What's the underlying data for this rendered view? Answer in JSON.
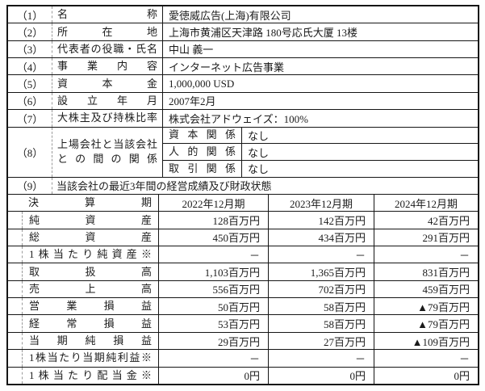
{
  "company_info": {
    "rows": [
      {
        "no": "（1）",
        "label": "名称",
        "value": "愛徳威広告(上海)有限公司"
      },
      {
        "no": "（2）",
        "label": "所在地",
        "value": "上海市黄浦区天津路 180号応氏大厦 13楼"
      },
      {
        "no": "（3）",
        "label": "代表者の役職・氏名",
        "value": "中山 義一"
      },
      {
        "no": "（4）",
        "label": "事業内容",
        "value": "インターネット広告事業"
      },
      {
        "no": "（5）",
        "label": "資本金",
        "value": "1,000,000 USD"
      },
      {
        "no": "（6）",
        "label": "設立年月",
        "value": "2007年2月"
      },
      {
        "no": "（7）",
        "label": "大株主及び持株比率",
        "value": "株式会社アドウェイズ：100%"
      }
    ],
    "row8": {
      "no": "（8）",
      "label": "上場会社と当該会社との間の関係",
      "sub_rows": [
        {
          "label": "資本関係",
          "value": "なし"
        },
        {
          "label": "人的関係",
          "value": "なし"
        },
        {
          "label": "取引関係",
          "value": "なし"
        }
      ]
    },
    "row9": {
      "no": "（9）",
      "value": "当該会社の最近3年間の経営成績及び財政状態"
    }
  },
  "financial": {
    "header_label": "決算期",
    "periods": [
      "2022年12月期",
      "2023年12月期",
      "2024年12月期"
    ],
    "rows": [
      {
        "label": "純資産",
        "values": [
          "128百万円",
          "142百万円",
          "42百万円"
        ]
      },
      {
        "label": "総資産",
        "values": [
          "450百万円",
          "434百万円",
          "291百万円"
        ]
      },
      {
        "label": "1株当たり純資産※",
        "values": [
          "－",
          "－",
          "－"
        ]
      },
      {
        "label": "取扱高",
        "values": [
          "1,103百万円",
          "1,365百万円",
          "831百万円"
        ]
      },
      {
        "label": "売上高",
        "values": [
          "556百万円",
          "702百万円",
          "459百万円"
        ]
      },
      {
        "label": "営業損益",
        "values": [
          "50百万円",
          "58百万円",
          "▲79百万円"
        ]
      },
      {
        "label": "経常損益",
        "values": [
          "53百万円",
          "58百万円",
          "▲79百万円"
        ]
      },
      {
        "label": "当期純損益",
        "values": [
          "29百万円",
          "27百万円",
          "▲109百万円"
        ]
      },
      {
        "label": "1株当たり当期純利益※",
        "values": [
          "－",
          "－",
          "－"
        ]
      },
      {
        "label": "1株当たり配当金※",
        "values": [
          "0円",
          "0円",
          "0円"
        ]
      }
    ]
  },
  "colors": {
    "border": "#151515",
    "dashed_divider": "#9a9a9a",
    "text": "#1b1b1b",
    "background": "#fefefe"
  }
}
